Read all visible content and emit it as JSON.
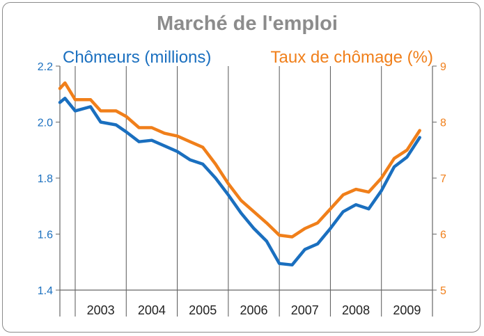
{
  "chart_data": {
    "type": "line",
    "title": "Marché de l'emploi",
    "x_categories": [
      "2003",
      "2004",
      "2005",
      "2006",
      "2007",
      "2008",
      "2009"
    ],
    "left_axis": {
      "label": "Chômeurs (millions)",
      "ylim": [
        1.4,
        2.2
      ],
      "ticks": [
        "1.4",
        "1.6",
        "1.8",
        "2.0",
        "2.2"
      ]
    },
    "right_axis": {
      "label": "Taux de chômage (%)",
      "ylim": [
        5,
        9
      ],
      "ticks": [
        "5",
        "6",
        "7",
        "8",
        "9"
      ]
    },
    "x_range": [
      2002.7,
      2010.0
    ],
    "grid": "vertical",
    "series": [
      {
        "name": "Chômeurs (millions)",
        "axis": "left",
        "color": "#1a6fbf",
        "x": [
          2002.7,
          2002.8,
          2003.0,
          2003.3,
          2003.5,
          2003.8,
          2004.0,
          2004.25,
          2004.5,
          2004.75,
          2005.0,
          2005.25,
          2005.5,
          2005.75,
          2006.0,
          2006.25,
          2006.5,
          2006.75,
          2007.0,
          2007.25,
          2007.5,
          2007.75,
          2008.0,
          2008.25,
          2008.5,
          2008.75,
          2009.0,
          2009.25,
          2009.5,
          2009.75
        ],
        "y": [
          2.07,
          2.085,
          2.04,
          2.055,
          2.0,
          1.99,
          1.965,
          1.93,
          1.935,
          1.915,
          1.895,
          1.865,
          1.85,
          1.8,
          1.74,
          1.675,
          1.62,
          1.575,
          1.495,
          1.49,
          1.545,
          1.565,
          1.62,
          1.68,
          1.705,
          1.69,
          1.755,
          1.84,
          1.875,
          1.945
        ]
      },
      {
        "name": "Taux de chômage (%)",
        "axis": "right",
        "color": "#f07f1a",
        "x": [
          2002.7,
          2002.8,
          2003.0,
          2003.3,
          2003.5,
          2003.8,
          2004.0,
          2004.25,
          2004.5,
          2004.75,
          2005.0,
          2005.25,
          2005.5,
          2005.75,
          2006.0,
          2006.25,
          2006.5,
          2006.75,
          2007.0,
          2007.25,
          2007.5,
          2007.75,
          2008.0,
          2008.25,
          2008.5,
          2008.75,
          2009.0,
          2009.25,
          2009.5,
          2009.75
        ],
        "y": [
          8.6,
          8.7,
          8.4,
          8.4,
          8.2,
          8.2,
          8.1,
          7.9,
          7.9,
          7.8,
          7.75,
          7.65,
          7.55,
          7.25,
          6.9,
          6.6,
          6.4,
          6.2,
          5.98,
          5.95,
          6.1,
          6.2,
          6.45,
          6.7,
          6.8,
          6.75,
          7.0,
          7.35,
          7.5,
          7.85
        ]
      }
    ]
  }
}
